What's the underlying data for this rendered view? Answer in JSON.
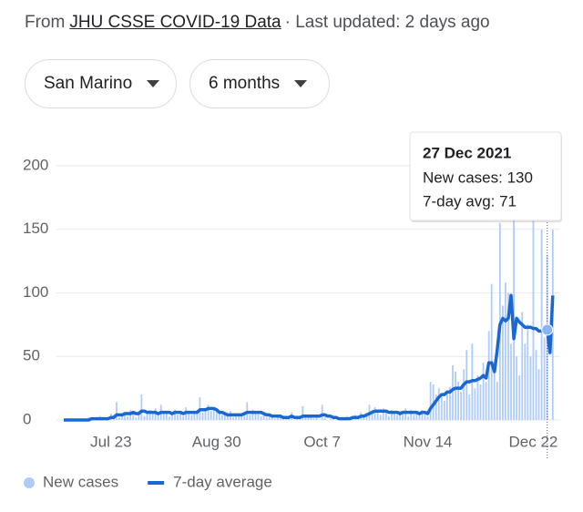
{
  "header": {
    "prefix": "From",
    "source": "JHU CSSE COVID-19 Data",
    "updated": "· Last updated: 2 days ago"
  },
  "controls": {
    "location": "San Marino",
    "period": "6 months"
  },
  "chart_data": {
    "type": "combo",
    "categories": [
      null,
      null,
      null,
      null,
      null,
      null,
      null,
      null,
      null,
      null,
      null,
      null,
      null,
      null,
      null,
      null,
      null,
      "Jul 23",
      null,
      null,
      null,
      null,
      null,
      null,
      null,
      null,
      null,
      null,
      null,
      null,
      null,
      null,
      null,
      null,
      null,
      null,
      null,
      null,
      null,
      null,
      null,
      null,
      null,
      null,
      null,
      null,
      null,
      null,
      null,
      null,
      null,
      null,
      null,
      null,
      null,
      "Aug 30",
      null,
      null,
      null,
      null,
      null,
      null,
      null,
      null,
      null,
      null,
      null,
      null,
      null,
      null,
      null,
      null,
      null,
      null,
      null,
      null,
      null,
      null,
      null,
      null,
      null,
      null,
      null,
      null,
      null,
      null,
      null,
      null,
      null,
      null,
      null,
      null,
      null,
      "Oct 7",
      null,
      null,
      null,
      null,
      null,
      null,
      null,
      null,
      null,
      null,
      null,
      null,
      null,
      null,
      null,
      null,
      null,
      null,
      null,
      null,
      null,
      null,
      null,
      null,
      null,
      null,
      null,
      null,
      null,
      null,
      null,
      null,
      null,
      null,
      null,
      null,
      null,
      "Nov 14",
      null,
      null,
      null,
      null,
      null,
      null,
      null,
      null,
      null,
      null,
      null,
      null,
      null,
      null,
      null,
      null,
      null,
      null,
      null,
      null,
      null,
      null,
      null,
      null,
      null,
      null,
      null,
      null,
      null,
      null,
      null,
      null,
      null,
      null,
      null,
      null,
      null,
      "Dec 22",
      null,
      null,
      null,
      null,
      null,
      null,
      null
    ],
    "series": [
      {
        "name": "New cases",
        "type": "bar",
        "color": "#aecbfa",
        "values": [
          0,
          0,
          0,
          0,
          1,
          0,
          0,
          0,
          0,
          2,
          0,
          0,
          1,
          3,
          0,
          2,
          0,
          5,
          3,
          14,
          2,
          4,
          6,
          3,
          8,
          5,
          2,
          7,
          20,
          3,
          5,
          8,
          6,
          9,
          4,
          12,
          5,
          7,
          3,
          6,
          8,
          4,
          5,
          3,
          10,
          6,
          4,
          7,
          5,
          18,
          6,
          9,
          12,
          7,
          10,
          8,
          6,
          4,
          5,
          3,
          7,
          2,
          4,
          5,
          3,
          6,
          14,
          4,
          8,
          5,
          6,
          3,
          4,
          2,
          5,
          3,
          1,
          2,
          4,
          1,
          3,
          2,
          6,
          0,
          3,
          1,
          11,
          2,
          4,
          2,
          1,
          3,
          0,
          12,
          2,
          0,
          1,
          3,
          0,
          2,
          1,
          0,
          3,
          1,
          2,
          4,
          2,
          6,
          3,
          5,
          12,
          8,
          10,
          6,
          4,
          9,
          7,
          3,
          8,
          5,
          4,
          7,
          6,
          9,
          3,
          8,
          4,
          6,
          5,
          8,
          7,
          3,
          30,
          28,
          20,
          25,
          18,
          15,
          22,
          26,
          43,
          38,
          30,
          22,
          40,
          55,
          20,
          60,
          25,
          35,
          28,
          45,
          30,
          70,
          107,
          40,
          30,
          155,
          90,
          108,
          100,
          60,
          160,
          50,
          35,
          85,
          60,
          75,
          50,
          160,
          55,
          40,
          150,
          65,
          130,
          0,
          150
        ]
      },
      {
        "name": "7-day average",
        "type": "line",
        "color": "#1967d2",
        "values": [
          0,
          0,
          0,
          0,
          0,
          0,
          0,
          0,
          0,
          0,
          1,
          1,
          1,
          1,
          1,
          1,
          1,
          2,
          2,
          4,
          4,
          4,
          5,
          5,
          5,
          6,
          5,
          5,
          7,
          7,
          6,
          6,
          6,
          6,
          5,
          6,
          6,
          6,
          6,
          5,
          6,
          6,
          6,
          5,
          6,
          6,
          6,
          6,
          6,
          8,
          8,
          8,
          9,
          9,
          9,
          8,
          6,
          6,
          5,
          4,
          4,
          4,
          4,
          4,
          4,
          5,
          6,
          6,
          6,
          6,
          6,
          6,
          5,
          4,
          4,
          3,
          3,
          3,
          3,
          2,
          2,
          2,
          3,
          2,
          2,
          2,
          3,
          3,
          3,
          3,
          3,
          3,
          3,
          4,
          4,
          3,
          3,
          2,
          2,
          1,
          1,
          1,
          1,
          1,
          2,
          2,
          2,
          3,
          3,
          4,
          5,
          6,
          7,
          7,
          7,
          7,
          7,
          6,
          6,
          6,
          6,
          5,
          6,
          6,
          6,
          6,
          6,
          6,
          5,
          6,
          6,
          5,
          9,
          12,
          15,
          18,
          20,
          20,
          22,
          22,
          24,
          25,
          25,
          25,
          28,
          30,
          30,
          31,
          31,
          32,
          33,
          35,
          33,
          45,
          45,
          38,
          55,
          75,
          80,
          78,
          80,
          98,
          64,
          80,
          77,
          75,
          73,
          73,
          73,
          72,
          72,
          70,
          70,
          71,
          71,
          53,
          98
        ]
      }
    ],
    "ylim": [
      0,
      200
    ],
    "yticks": [
      0,
      50,
      100,
      150,
      200
    ],
    "grid": true,
    "tooltip": {
      "index": 174,
      "title": "27 Dec 2021",
      "lines": [
        "New cases: 130",
        "7-day avg: 71"
      ]
    }
  }
}
